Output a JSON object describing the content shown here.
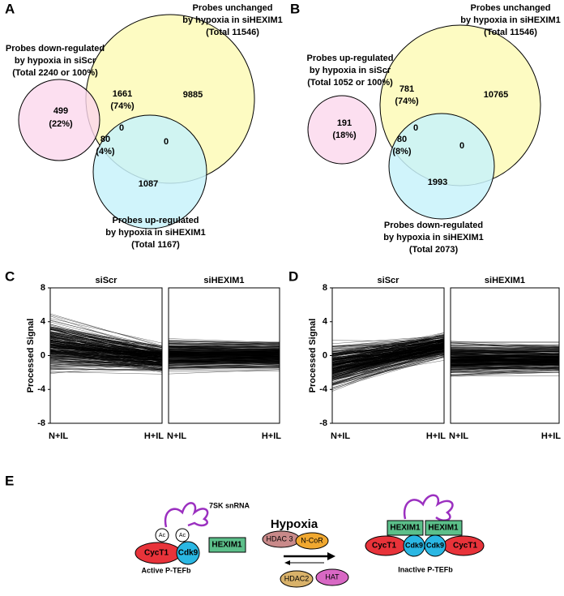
{
  "panel_a": {
    "label": "A",
    "top_label": [
      "Probes unchanged",
      "by hypoxia in siHEXIM1",
      "(Total 11546)"
    ],
    "left_label": [
      "Probes down-regulated",
      "by hypoxia in siScr",
      "(Total 2240 or 100%)"
    ],
    "bottom_label": [
      "Probes up-regulated",
      "by hypoxia in siHEXIM1",
      "(Total 1167)"
    ],
    "regions": {
      "left": [
        499,
        "(22%)"
      ],
      "left_top": [
        1661,
        "(74%)"
      ],
      "top": [
        9885
      ],
      "center": [
        0
      ],
      "left_bottom": [
        80,
        "(4%)"
      ],
      "top_bottom": [
        0
      ],
      "bottom": [
        1087
      ]
    }
  },
  "panel_b": {
    "label": "B",
    "top_label": [
      "Probes unchanged",
      "by hypoxia in siHEXIM1",
      "(Total 11546)"
    ],
    "left_label": [
      "Probes up-regulated",
      "by hypoxia in siScr",
      "(Total 1052 or 100%)"
    ],
    "bottom_label": [
      "Probes down-regulated",
      "by hypoxia in siHEXIM1",
      "(Total 2073)"
    ],
    "regions": {
      "left": [
        191,
        "(18%)"
      ],
      "left_top": [
        781,
        "(74%)"
      ],
      "top": [
        10765
      ],
      "center": [
        0
      ],
      "left_bottom": [
        80,
        "(8%)"
      ],
      "top_bottom": [
        0
      ],
      "bottom": [
        1993
      ]
    }
  },
  "panel_c": {
    "label": "C",
    "y_label": "Processed Signal",
    "ylim": [
      -8,
      8
    ],
    "yticks": [
      8,
      4,
      0,
      -4,
      -8
    ],
    "subplots": [
      {
        "title": "siScr",
        "x_labels": [
          "N+IL",
          "H+IL"
        ]
      },
      {
        "title": "siHEXIM1",
        "x_labels": [
          "N+IL",
          "H+IL"
        ]
      }
    ]
  },
  "panel_d": {
    "label": "D",
    "y_label": "Processed Signal",
    "ylim": [
      -8,
      8
    ],
    "yticks": [
      8,
      4,
      0,
      -4,
      -8
    ],
    "subplots": [
      {
        "title": "siScr",
        "x_labels": [
          "N+IL",
          "H+IL"
        ]
      },
      {
        "title": "siHEXIM1",
        "x_labels": [
          "N+IL",
          "H+IL"
        ]
      }
    ]
  },
  "panel_e": {
    "label": "E",
    "rna": "7SK snRNA",
    "ac": [
      "Ac",
      "Ac"
    ],
    "active": {
      "cyc": "CycT1",
      "cdk": "Cdk9",
      "name": "Active P-TEFb"
    },
    "hexim_free": "HEXIM1",
    "hypoxia": "Hypoxia",
    "hdac3": "HDAC 3",
    "ncor": "N-CoR",
    "hdac2": "HDAC2",
    "hat": "HAT",
    "inactive": {
      "hexim": [
        "HEXIM1",
        "HEXIM1"
      ],
      "cyc": [
        "CycT1",
        "CycT1"
      ],
      "cdk": [
        "Cdk9",
        "Cdk9"
      ],
      "name": "Inactive P-TEFb"
    }
  }
}
